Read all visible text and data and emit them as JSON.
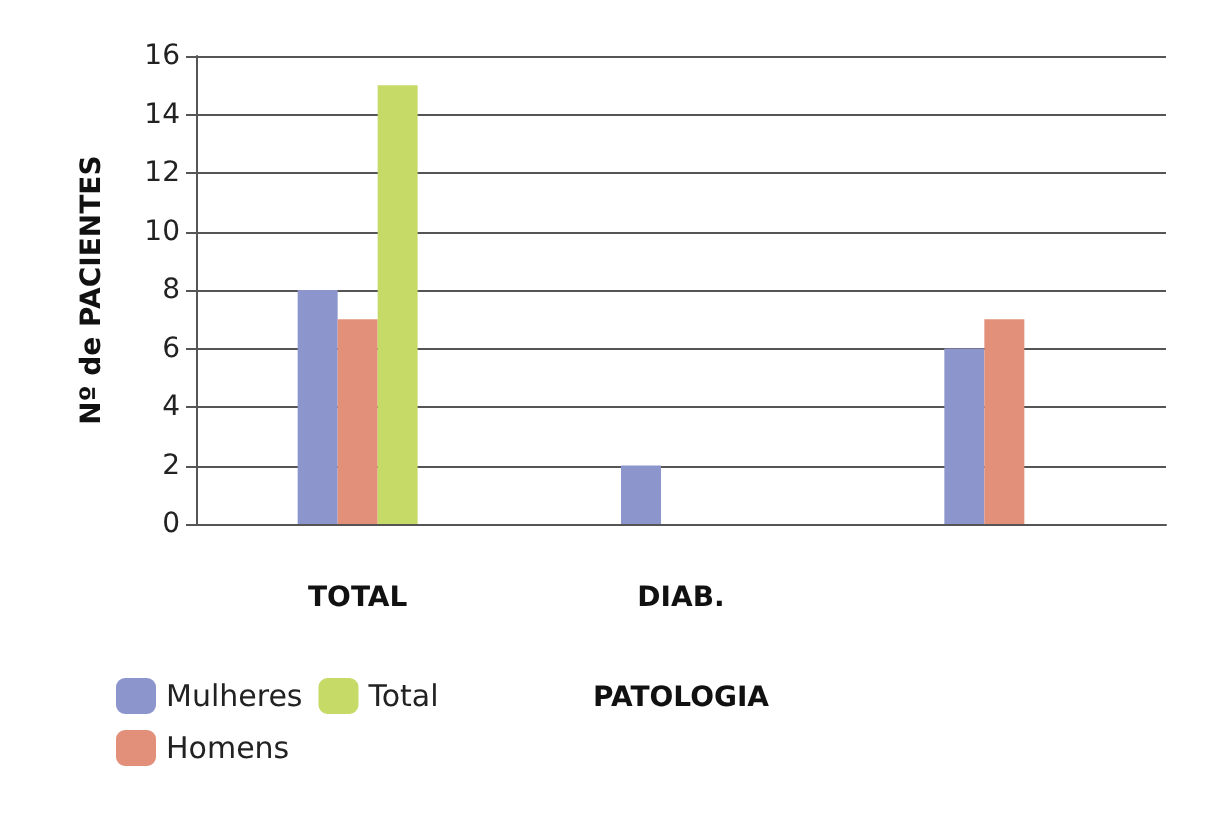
{
  "chart_data": {
    "type": "bar",
    "xlabel": "PATOLOGIA",
    "ylabel": "Nº de PACIENTES",
    "categories": [
      "TOTAL",
      "DIAB.",
      null
    ],
    "series": [
      {
        "name": "Mulheres",
        "color": "#8c96cc",
        "values": [
          8,
          2,
          6
        ]
      },
      {
        "name": "Homens",
        "color": "#e3907a",
        "values": [
          7,
          0,
          7
        ]
      },
      {
        "name": "Total",
        "color": "#c6da68",
        "values": [
          15,
          null,
          null
        ]
      }
    ],
    "ylim": [
      0,
      16
    ],
    "yticks": [
      0,
      2,
      4,
      6,
      8,
      10,
      12,
      14,
      16
    ],
    "grid": "y",
    "legend": "bottom left"
  }
}
